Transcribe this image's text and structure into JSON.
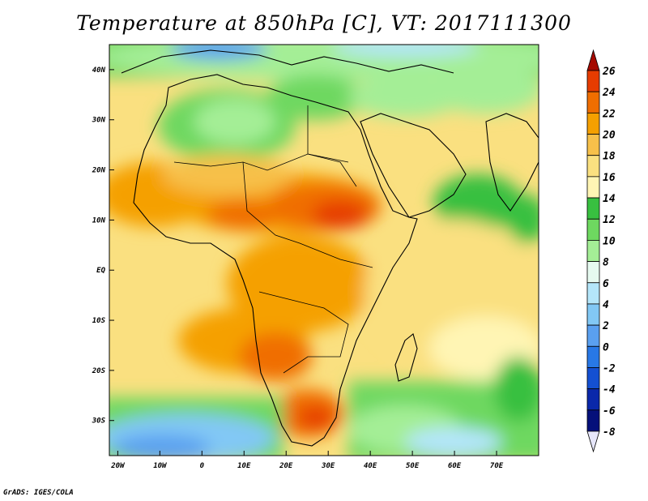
{
  "title": "Temperature at 850hPa [C], VT: 2017111300",
  "credit": "GrADS: IGES/COLA",
  "map": {
    "lon_range": [
      -22,
      80
    ],
    "lat_range": [
      -37,
      45
    ],
    "lon_ticks": [
      {
        "value": -20,
        "label": "20W"
      },
      {
        "value": -10,
        "label": "10W"
      },
      {
        "value": 0,
        "label": "0"
      },
      {
        "value": 10,
        "label": "10E"
      },
      {
        "value": 20,
        "label": "20E"
      },
      {
        "value": 30,
        "label": "30E"
      },
      {
        "value": 40,
        "label": "40E"
      },
      {
        "value": 50,
        "label": "50E"
      },
      {
        "value": 60,
        "label": "60E"
      },
      {
        "value": 70,
        "label": "70E"
      }
    ],
    "lat_ticks": [
      {
        "value": 40,
        "label": "40N"
      },
      {
        "value": 30,
        "label": "30N"
      },
      {
        "value": 20,
        "label": "20N"
      },
      {
        "value": 10,
        "label": "10N"
      },
      {
        "value": 0,
        "label": "EQ"
      },
      {
        "value": -10,
        "label": "10S"
      },
      {
        "value": -20,
        "label": "20S"
      },
      {
        "value": -30,
        "label": "30S"
      }
    ]
  },
  "colorbar": {
    "levels": [
      "26",
      "24",
      "22",
      "20",
      "18",
      "16",
      "14",
      "12",
      "10",
      "8",
      "6",
      "4",
      "2",
      "0",
      "-2",
      "-4",
      "-6",
      "-8"
    ],
    "colors_top_to_bottom": [
      "#a50a00",
      "#e63c00",
      "#f06e00",
      "#f5a000",
      "#f7c04a",
      "#fae080",
      "#fff5b4",
      "#38c040",
      "#6ed860",
      "#a4ee96",
      "#e6faf0",
      "#b4e6fa",
      "#82c8f5",
      "#5aa0f0",
      "#2878e6",
      "#1450d2",
      "#0a28aa",
      "#05107a",
      "#e6e6fa"
    ]
  }
}
